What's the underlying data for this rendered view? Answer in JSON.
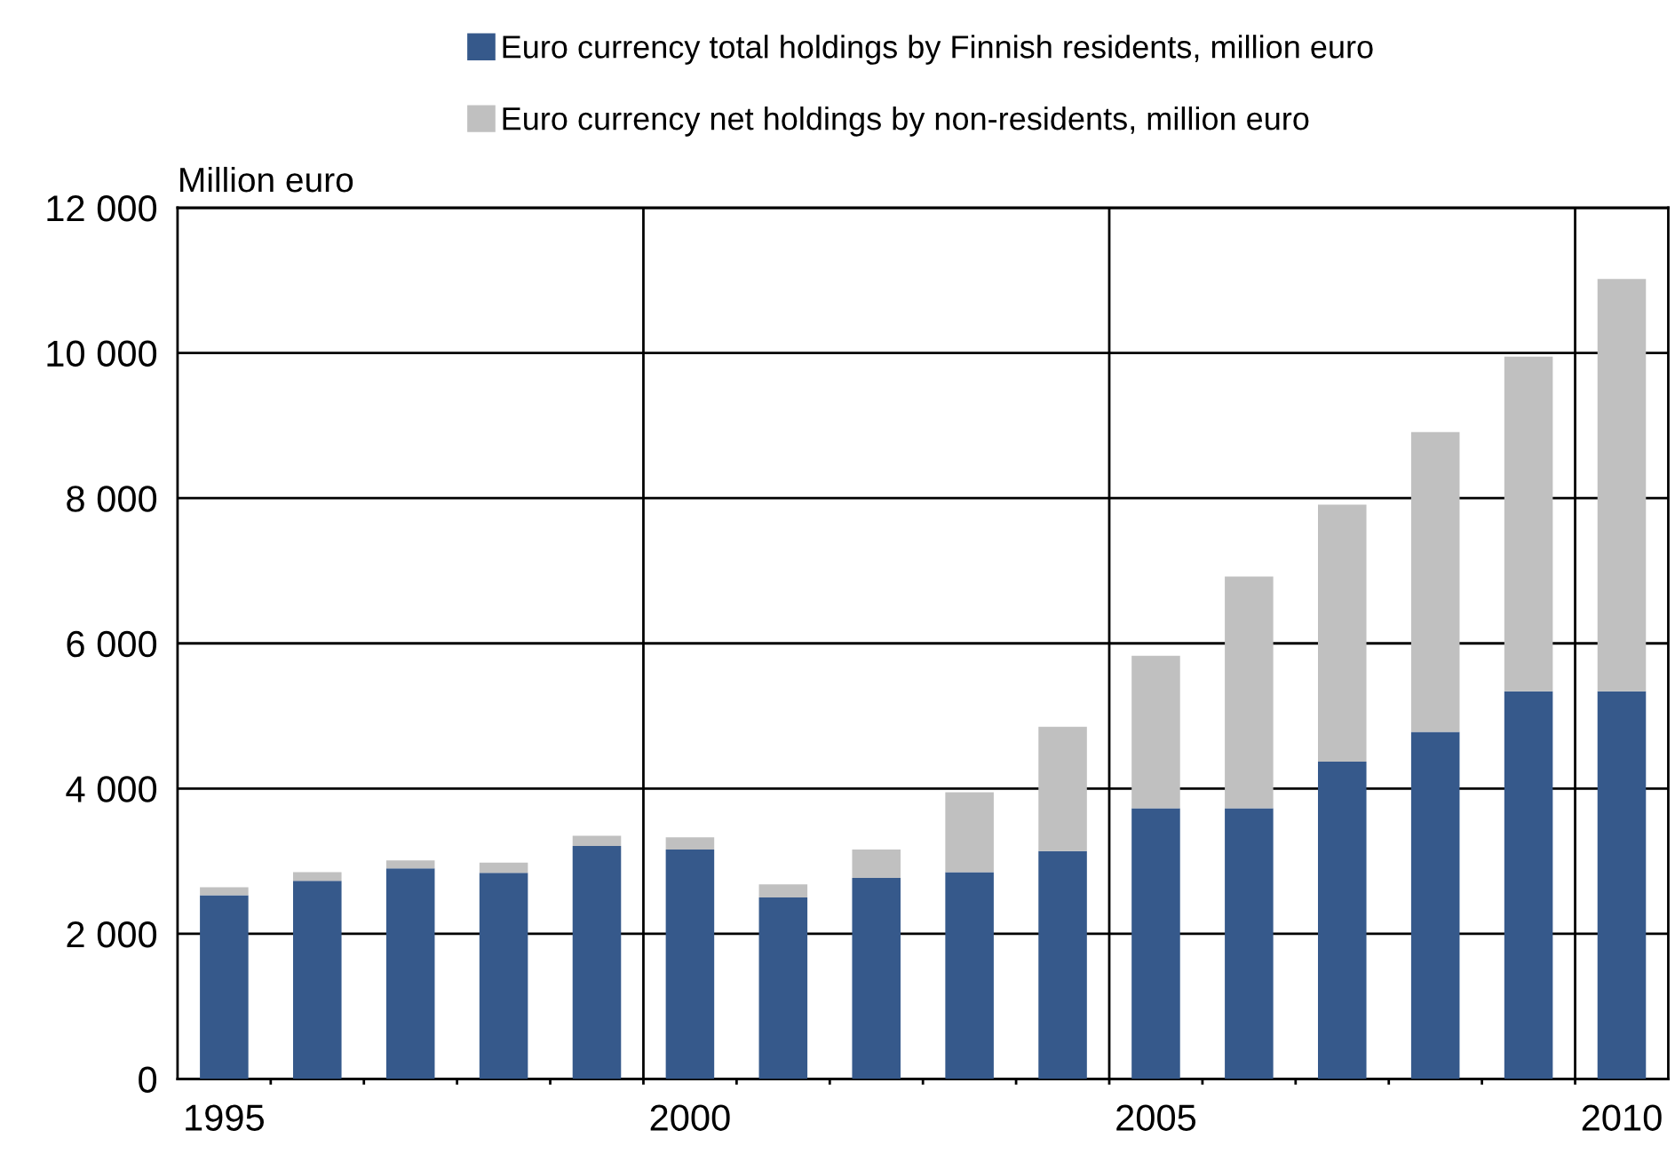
{
  "chart_data": {
    "type": "bar",
    "stacked": true,
    "ylabel": "Million euro",
    "categories": [
      "1995",
      null,
      null,
      null,
      null,
      "2000",
      null,
      null,
      null,
      null,
      "2005",
      null,
      null,
      null,
      null,
      "2010"
    ],
    "series": [
      {
        "name": "Euro currency total holdings by Finnish residents, million euro",
        "color": "#36598b",
        "values": [
          2530,
          2730,
          2900,
          2840,
          3210,
          3160,
          2500,
          2770,
          2850,
          3140,
          3730,
          3730,
          4370,
          4780,
          5340,
          5340
        ]
      },
      {
        "name": "Euro currency net holdings by non-residents, million euro",
        "color": "#c0c0c0",
        "values": [
          110,
          120,
          110,
          140,
          140,
          170,
          180,
          390,
          1100,
          1710,
          2100,
          3190,
          3540,
          4130,
          4610,
          5680
        ]
      }
    ],
    "ylim": [
      0,
      12000
    ],
    "yticks": [
      0,
      {
        "value": 2000,
        "label": "2 000"
      },
      {
        "value": 4000,
        "label": "4 000"
      },
      {
        "value": 6000,
        "label": "6 000"
      },
      {
        "value": 8000,
        "label": "8 000"
      },
      {
        "value": 10000,
        "label": "10 000"
      },
      {
        "value": 12000,
        "label": "12 000"
      }
    ],
    "grid": true,
    "legend": "top"
  }
}
